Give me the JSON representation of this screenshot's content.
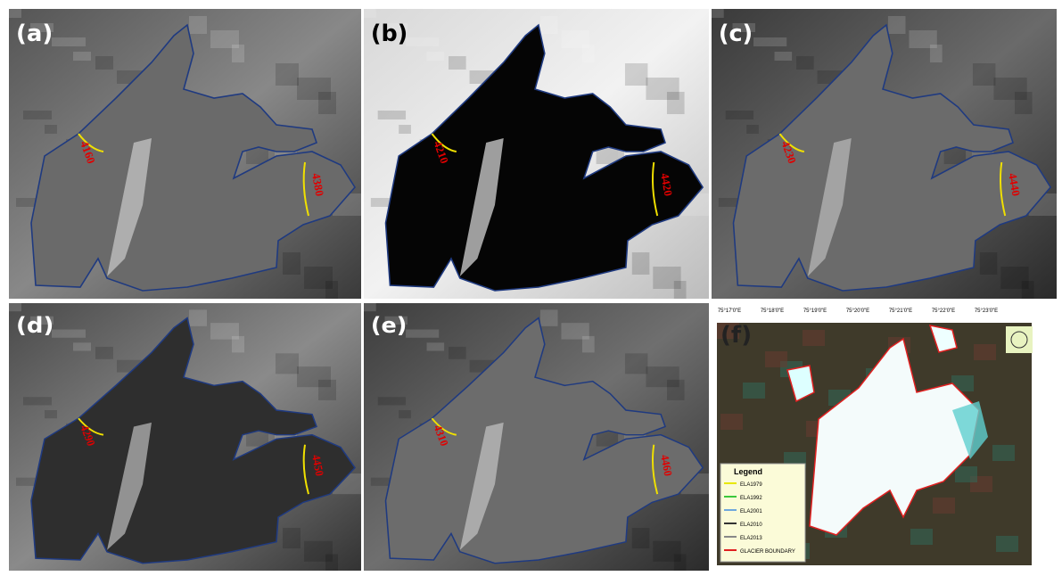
{
  "panels": [
    {
      "label": "(a)",
      "ela": [
        "4160",
        "4380"
      ]
    },
    {
      "label": "(b)",
      "ela": [
        "4210",
        "4420"
      ]
    },
    {
      "label": "(c)",
      "ela": [
        "4230",
        "4440"
      ]
    },
    {
      "label": "(d)",
      "ela": [
        "4290",
        "4450"
      ]
    },
    {
      "label": "(e)",
      "ela": [
        "4310",
        "4460"
      ]
    },
    {
      "label": "(f)"
    }
  ],
  "map": {
    "longitudes": [
      "75°17'0\"E",
      "75°18'0\"E",
      "75°19'0\"E",
      "75°20'0\"E",
      "75°21'0\"E",
      "75°22'0\"E",
      "75°23'0\"E"
    ],
    "legend": {
      "title": "Legend",
      "items": [
        {
          "name": "ELA1979",
          "color": "#e8e800"
        },
        {
          "name": "ELA1992",
          "color": "#3cc83c"
        },
        {
          "name": "ELA2001",
          "color": "#6fa8dc"
        },
        {
          "name": "ELA2010",
          "color": "#333333"
        },
        {
          "name": "ELA2013",
          "color": "#888888"
        },
        {
          "name": "GLACIER BOUNDARY",
          "color": "#e02020"
        }
      ]
    }
  }
}
